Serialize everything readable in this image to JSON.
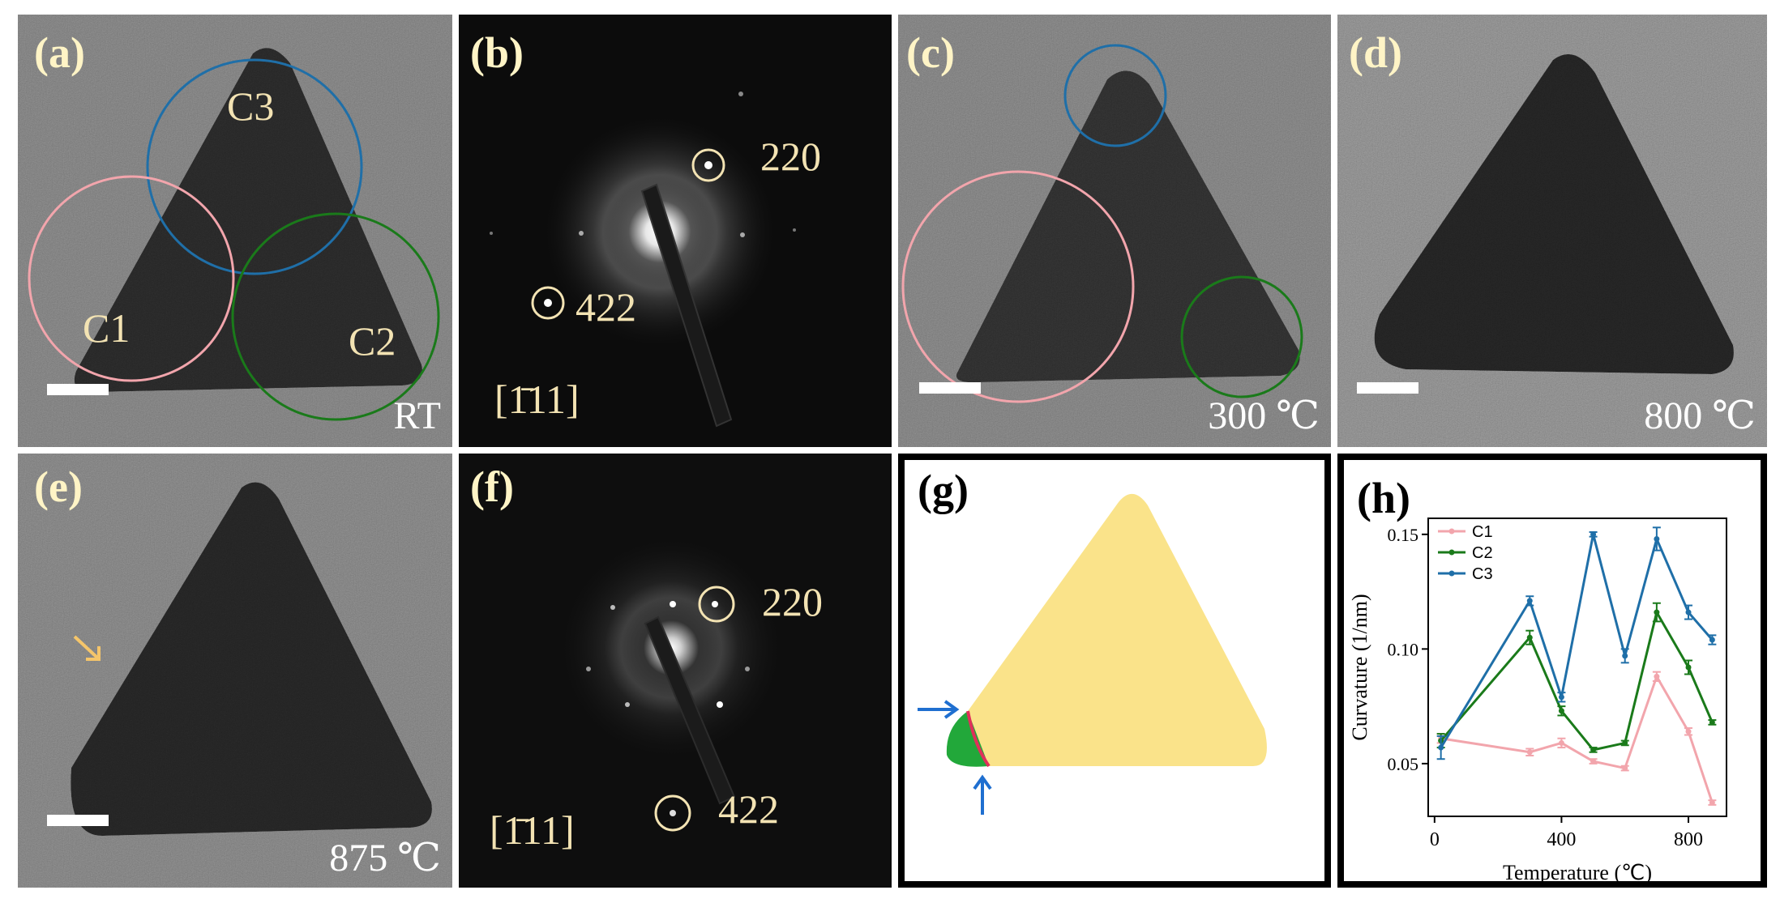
{
  "panels": {
    "a": {
      "label": "(a)",
      "condition": "RT",
      "regions": [
        "C1",
        "C2",
        "C3"
      ]
    },
    "b": {
      "label": "(b)",
      "spots": [
        "220",
        "422"
      ],
      "zone_axis": "[1̄11]"
    },
    "c": {
      "label": "(c)",
      "condition": "300 ℃"
    },
    "d": {
      "label": "(d)",
      "condition": "800 ℃"
    },
    "e": {
      "label": "(e)",
      "condition": "875 ℃"
    },
    "f": {
      "label": "(f)",
      "spots": [
        "220",
        "422"
      ],
      "zone_axis": "[1̄11]"
    },
    "g": {
      "label": "(g)"
    },
    "h": {
      "label": "(h)"
    }
  },
  "colors": {
    "c1": "#f2a5ac",
    "c2": "#1a7a1a",
    "c3": "#1f6fa8",
    "triangle_fill": "#fae38a",
    "arrow_blue": "#1f6fd0"
  },
  "chart_data": {
    "type": "line",
    "xlabel": "Temperature (℃)",
    "ylabel": "Curvature (1/nm)",
    "xlim": [
      -20,
      920
    ],
    "ylim": [
      0.027,
      0.157
    ],
    "xticks": [
      0,
      400,
      800
    ],
    "yticks": [
      0.05,
      0.1,
      0.15
    ],
    "ytick_labels": [
      "0.05",
      "0.10",
      "0.15"
    ],
    "legend_position": "top-left",
    "series": [
      {
        "name": "C1",
        "color": "#f2a5ac",
        "x": [
          20,
          300,
          400,
          500,
          600,
          700,
          800,
          875
        ],
        "y": [
          0.061,
          0.055,
          0.059,
          0.051,
          0.048,
          0.088,
          0.064,
          0.033
        ],
        "err": [
          0.002,
          0.0015,
          0.002,
          0.001,
          0.001,
          0.002,
          0.0015,
          0.001
        ]
      },
      {
        "name": "C2",
        "color": "#1a7a1a",
        "x": [
          20,
          300,
          400,
          500,
          600,
          700,
          800,
          875
        ],
        "y": [
          0.06,
          0.105,
          0.073,
          0.056,
          0.059,
          0.116,
          0.092,
          0.068
        ],
        "err": [
          0.003,
          0.003,
          0.002,
          0.001,
          0.001,
          0.004,
          0.003,
          0.001
        ]
      },
      {
        "name": "C3",
        "color": "#1f6fa8",
        "x": [
          20,
          300,
          400,
          500,
          600,
          700,
          800,
          875
        ],
        "y": [
          0.057,
          0.121,
          0.079,
          0.15,
          0.097,
          0.148,
          0.116,
          0.104
        ],
        "err": [
          0.005,
          0.002,
          0.002,
          0.001,
          0.003,
          0.005,
          0.003,
          0.002
        ]
      }
    ]
  }
}
